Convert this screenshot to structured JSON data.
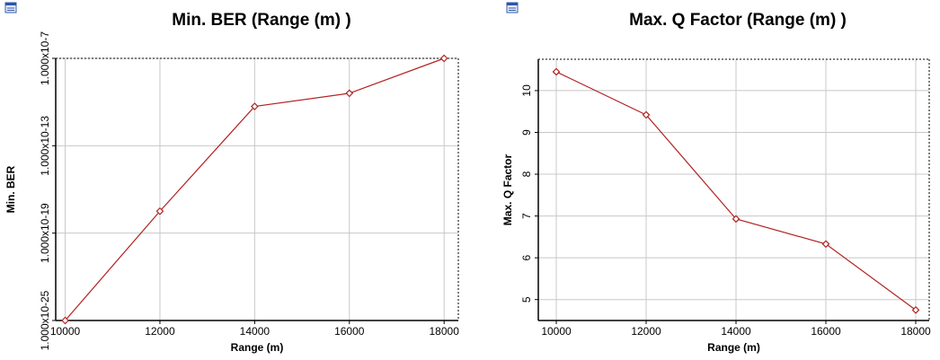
{
  "chart_data": [
    {
      "type": "line",
      "title": "Min. BER (Range (m) )",
      "xlabel": "Range (m)",
      "ylabel": "Min. BER",
      "icon": "chart-window-icon",
      "yscale": "log",
      "x": [
        10000,
        12000,
        14000,
        16000,
        18000
      ],
      "xlim": [
        9800,
        18300
      ],
      "xticks": [
        10000,
        12000,
        14000,
        16000,
        18000
      ],
      "ylim_log10": [
        -25,
        -7
      ],
      "ytick_log10": [
        -25,
        -19,
        -13,
        -7
      ],
      "ytick_labels": [
        "1.000x10-25",
        "1.000x10-19",
        "1.000x10-13",
        "1.000x10-7"
      ],
      "series": [
        {
          "values": [
            1e-25,
            3.2e-18,
            5e-11,
            4e-10,
            1e-07
          ]
        }
      ],
      "grid": true,
      "color": "#b22222"
    },
    {
      "type": "line",
      "title": "Max. Q Factor (Range (m) )",
      "xlabel": "Range (m)",
      "ylabel": "Max. Q Factor",
      "icon": "chart-window-icon",
      "x": [
        10000,
        12000,
        14000,
        16000,
        18000
      ],
      "xlim": [
        9600,
        18300
      ],
      "xticks": [
        10000,
        12000,
        14000,
        16000,
        18000
      ],
      "ylim": [
        4.5,
        10.75
      ],
      "yticks": [
        5,
        6,
        7,
        8,
        9,
        10
      ],
      "series": [
        {
          "values": [
            10.45,
            9.42,
            6.93,
            6.33,
            4.75
          ]
        }
      ],
      "grid": true,
      "color": "#b22222"
    }
  ]
}
